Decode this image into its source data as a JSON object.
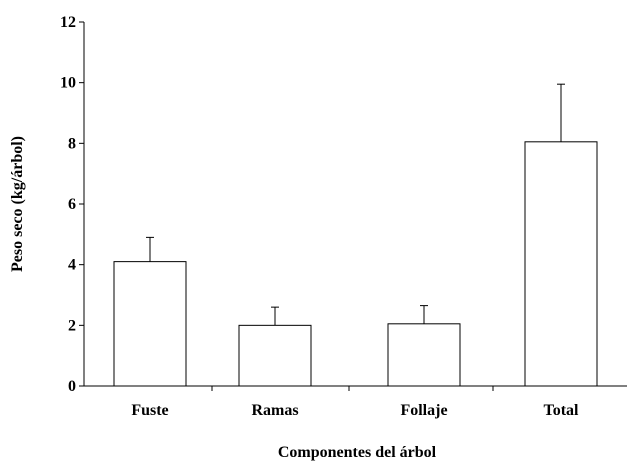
{
  "chart_data": {
    "type": "bar",
    "title": "",
    "xlabel": "Componentes del árbol",
    "ylabel": "Peso seco (kg/árbol)",
    "categories": [
      "Fuste",
      "Ramas",
      "Follaje",
      "Total"
    ],
    "values": [
      4.1,
      2.0,
      2.05,
      8.05
    ],
    "error_upper": [
      0.8,
      0.6,
      0.6,
      1.9
    ],
    "ylim": [
      0,
      12
    ],
    "yticks": [
      0,
      2,
      4,
      6,
      8,
      10,
      12
    ],
    "grid": false,
    "legend": "none",
    "colors": {
      "bar_fill": "#ffffff",
      "bar_stroke": "#000000",
      "axis": "#000000"
    }
  }
}
